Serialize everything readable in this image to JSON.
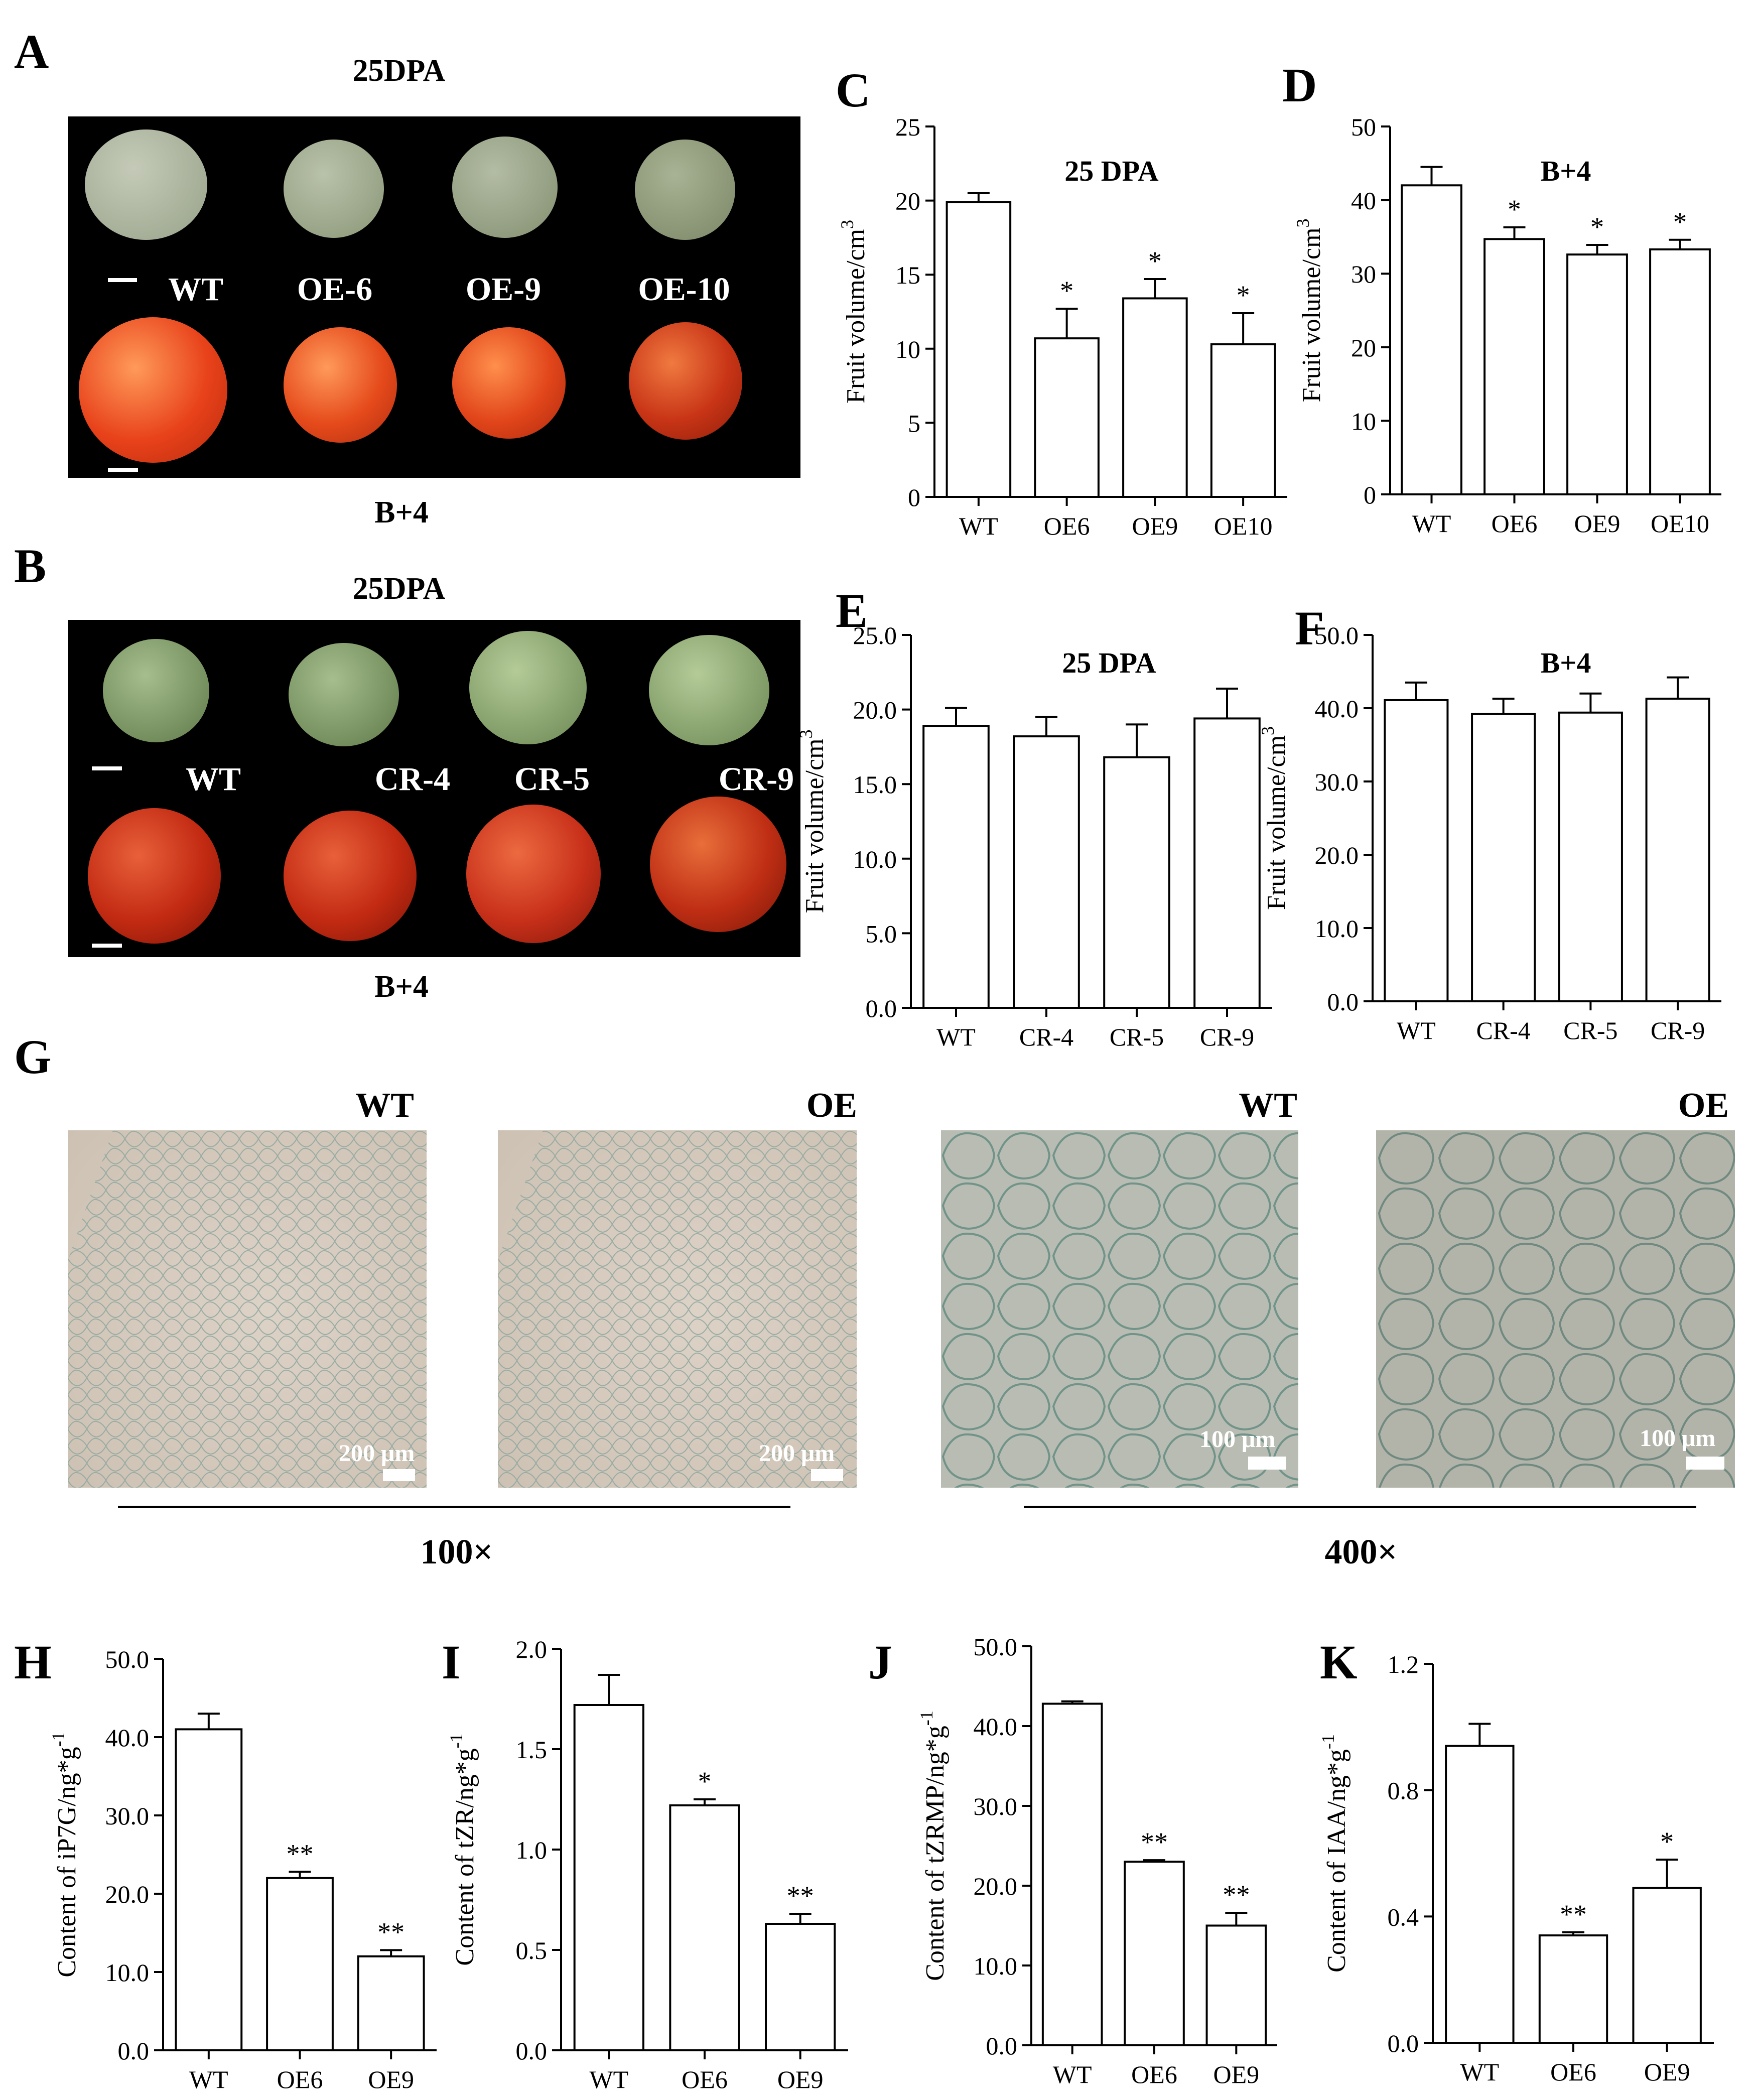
{
  "panels": {
    "A": {
      "letter": "A",
      "top_label": "25DPA",
      "bottom_label": "B+4",
      "fruit_labels": [
        "WT",
        "OE-6",
        "OE-9",
        "OE-10"
      ],
      "colors": {
        "green_fruit": "#a9b39c",
        "red_fruit": "#e8421a"
      }
    },
    "B": {
      "letter": "B",
      "top_label": "25DPA",
      "bottom_label": "B+4",
      "fruit_labels": [
        "WT",
        "CR-4",
        "CR-5",
        "CR-9"
      ],
      "colors": {
        "green_fruit": "#8fa878",
        "red_fruit": "#c62c12"
      }
    },
    "G": {
      "letter": "G",
      "titles": [
        "WT",
        "OE",
        "WT",
        "OE"
      ],
      "scale_texts": [
        "200 μm",
        "200 μm",
        "100 μm",
        "100 μm"
      ],
      "magnifications": [
        "100×",
        "400×"
      ]
    }
  },
  "chart_data": [
    {
      "id": "C",
      "letter": "C",
      "type": "bar",
      "title": "25 DPA",
      "ylabel": "Fruit volume/cm",
      "ylabel_sup": "3",
      "categories": [
        "WT",
        "OE6",
        "OE9",
        "OE10"
      ],
      "values": [
        19.9,
        10.7,
        13.4,
        10.3
      ],
      "errors": [
        0.6,
        2.0,
        1.3,
        2.1
      ],
      "significance": [
        "",
        "*",
        "*",
        "*"
      ],
      "ylim": [
        0,
        25
      ],
      "yticks": [
        "0",
        "5",
        "10",
        "15",
        "20",
        "25"
      ]
    },
    {
      "id": "D",
      "letter": "D",
      "type": "bar",
      "title": "B+4",
      "ylabel": "Fruit volume/cm",
      "ylabel_sup": "3",
      "categories": [
        "WT",
        "OE6",
        "OE9",
        "OE10"
      ],
      "values": [
        42.0,
        34.7,
        32.6,
        33.3
      ],
      "errors": [
        2.5,
        1.6,
        1.3,
        1.3
      ],
      "significance": [
        "",
        "*",
        "*",
        "*"
      ],
      "ylim": [
        0,
        50
      ],
      "yticks": [
        "0",
        "10",
        "20",
        "30",
        "40",
        "50"
      ]
    },
    {
      "id": "E",
      "letter": "E",
      "type": "bar",
      "title": "25 DPA",
      "ylabel": "Fruit volume/cm",
      "ylabel_sup": "3",
      "categories": [
        "WT",
        "CR-4",
        "CR-5",
        "CR-9"
      ],
      "values": [
        18.9,
        18.2,
        16.8,
        19.4
      ],
      "errors": [
        1.2,
        1.3,
        2.2,
        2.0
      ],
      "significance": [
        "",
        "",
        "",
        ""
      ],
      "ylim": [
        0,
        25
      ],
      "yticks": [
        "0.0",
        "5.0",
        "10.0",
        "15.0",
        "20.0",
        "25.0"
      ]
    },
    {
      "id": "F",
      "letter": "F",
      "type": "bar",
      "title": "B+4",
      "ylabel": "Fruit volume/cm",
      "ylabel_sup": "3",
      "categories": [
        "WT",
        "CR-4",
        "CR-5",
        "CR-9"
      ],
      "values": [
        41.1,
        39.2,
        39.4,
        41.3
      ],
      "errors": [
        2.4,
        2.1,
        2.6,
        2.9
      ],
      "significance": [
        "",
        "",
        "",
        ""
      ],
      "ylim": [
        0,
        50
      ],
      "yticks": [
        "0.0",
        "10.0",
        "20.0",
        "30.0",
        "40.0",
        "50.0"
      ]
    },
    {
      "id": "H",
      "letter": "H",
      "type": "bar",
      "title": "",
      "ylabel": "Content of iP7G/ng*g",
      "ylabel_sup": "-1",
      "categories": [
        "WT",
        "OE6",
        "OE9"
      ],
      "values": [
        41.0,
        22.0,
        12.0
      ],
      "errors": [
        2.0,
        0.8,
        0.8
      ],
      "significance": [
        "",
        "**",
        "**"
      ],
      "ylim": [
        0,
        50
      ],
      "yticks": [
        "0.0",
        "10.0",
        "20.0",
        "30.0",
        "40.0",
        "50.0"
      ]
    },
    {
      "id": "I",
      "letter": "I",
      "type": "bar",
      "title": "",
      "ylabel": "Content of tZR/ng*g",
      "ylabel_sup": "-1",
      "categories": [
        "WT",
        "OE6",
        "OE9"
      ],
      "values": [
        1.72,
        1.22,
        0.63
      ],
      "errors": [
        0.15,
        0.03,
        0.05
      ],
      "significance": [
        "",
        "*",
        "**"
      ],
      "ylim": [
        0,
        2.0
      ],
      "yticks": [
        "0.0",
        "0.5",
        "1.0",
        "1.5",
        "2.0"
      ]
    },
    {
      "id": "J",
      "letter": "J",
      "type": "bar",
      "title": "",
      "ylabel": "Content of tZRMP/ng*g",
      "ylabel_sup": "-1",
      "categories": [
        "WT",
        "OE6",
        "OE9"
      ],
      "values": [
        42.8,
        23.0,
        15.0
      ],
      "errors": [
        0.3,
        0.2,
        1.6
      ],
      "significance": [
        "",
        "**",
        "**"
      ],
      "ylim": [
        0,
        50
      ],
      "yticks": [
        "0.0",
        "10.0",
        "20.0",
        "30.0",
        "40.0",
        "50.0"
      ]
    },
    {
      "id": "K",
      "letter": "K",
      "type": "bar",
      "title": "",
      "ylabel": "Content of IAA/ng*g",
      "ylabel_sup": "-1",
      "categories": [
        "WT",
        "OE6",
        "OE9"
      ],
      "values": [
        0.94,
        0.34,
        0.49
      ],
      "errors": [
        0.07,
        0.01,
        0.09
      ],
      "significance": [
        "",
        "**",
        "*"
      ],
      "ylim": [
        0,
        1.2
      ],
      "yticks": [
        "0.0",
        "0.4",
        "0.8",
        "1.2"
      ]
    }
  ]
}
